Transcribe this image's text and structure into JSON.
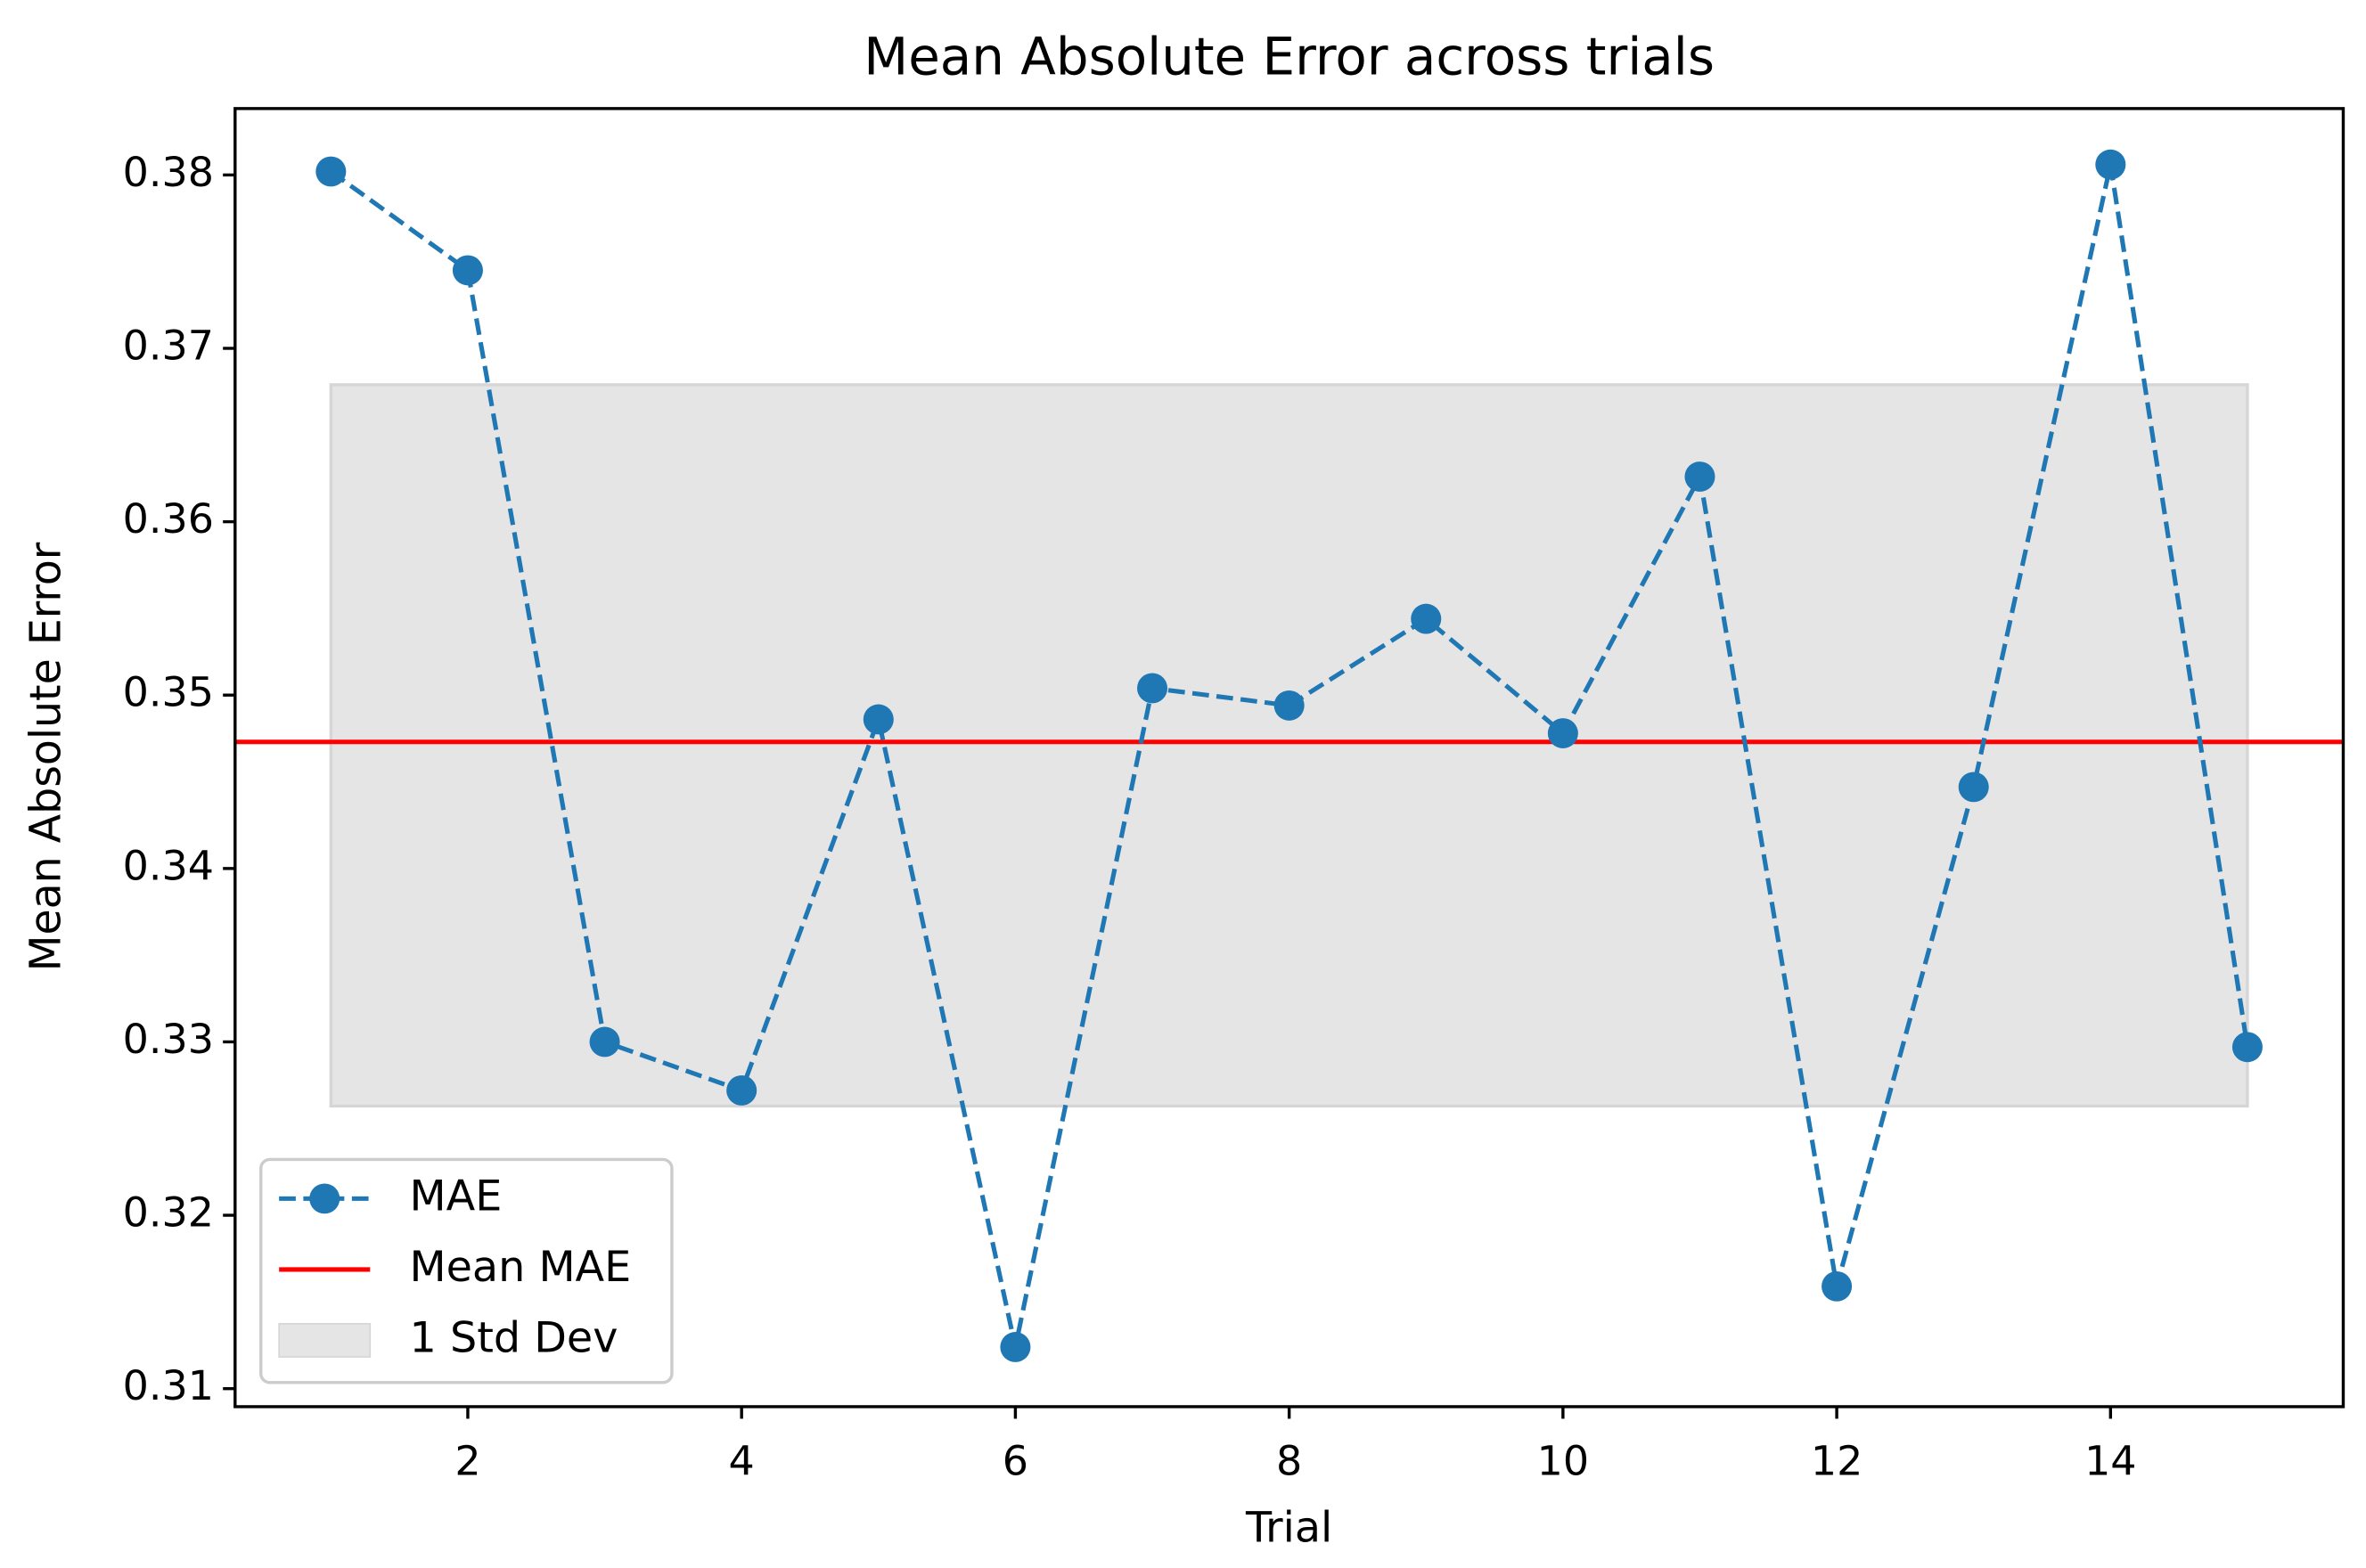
{
  "chart_data": {
    "type": "line",
    "title": "Mean Absolute Error across trials",
    "x_label": "Trial",
    "y_label": "Mean Absolute Error",
    "x": [
      1,
      2,
      3,
      4,
      5,
      6,
      7,
      8,
      9,
      10,
      11,
      12,
      13,
      14,
      15
    ],
    "series": [
      {
        "name": "MAE",
        "color": "#1f77b4",
        "linestyle": "dashed",
        "marker": "circle",
        "values": [
          0.3802,
          0.3745,
          0.33,
          0.3272,
          0.3486,
          0.3124,
          0.3504,
          0.3494,
          0.3544,
          0.3478,
          0.3626,
          0.3159,
          0.3447,
          0.3806,
          0.3297
        ]
      }
    ],
    "mean_line": {
      "name": "Mean MAE",
      "color": "#ff0000",
      "value": 0.3473
    },
    "band": {
      "name": "1 Std Dev",
      "color": "#e5e5e5",
      "lower": 0.3263,
      "upper": 0.3679
    },
    "xlim": [
      0.3,
      15.7
    ],
    "ylim": [
      0.30896,
      0.38383
    ],
    "xticks": [
      2,
      4,
      6,
      8,
      10,
      12,
      14
    ],
    "yticks": [
      0.31,
      0.32,
      0.33,
      0.34,
      0.35,
      0.36,
      0.37,
      0.38
    ],
    "legend": "lower left"
  }
}
